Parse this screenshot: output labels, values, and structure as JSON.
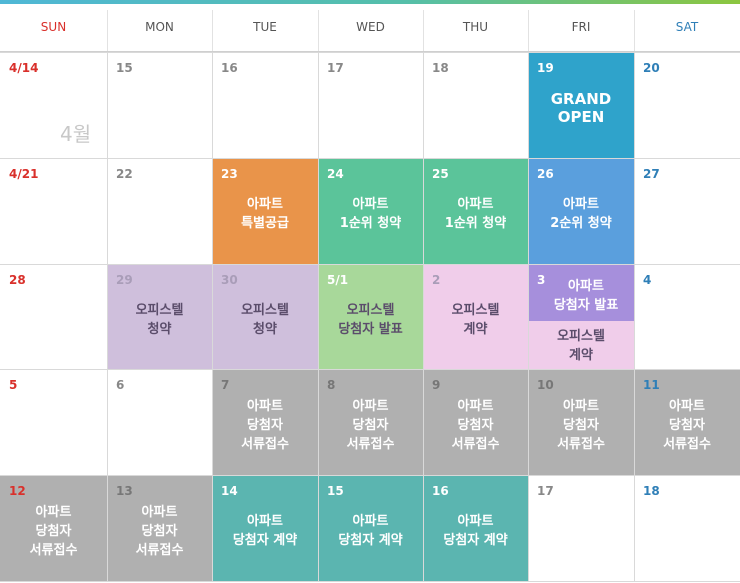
{
  "weekdays": [
    "SUN",
    "MON",
    "TUE",
    "WED",
    "THU",
    "FRI",
    "SAT"
  ],
  "month_label": "4월",
  "colors": {
    "orange": "#e9944a",
    "green": "#5bc49a",
    "blue": "#5a9fdd",
    "grand_blue": "#2fa3cb",
    "lilac": "#cfbfdc",
    "lightgreen": "#a8d89a",
    "pink": "#f0cdea",
    "purple": "#a68fdc",
    "gray": "#b0b0b0",
    "teal": "#5bb5b0"
  },
  "weeks": [
    [
      {
        "date": "4/14"
      },
      {
        "date": "15"
      },
      {
        "date": "16"
      },
      {
        "date": "17"
      },
      {
        "date": "18"
      },
      {
        "date": "19",
        "label": "GRAND\nOPEN",
        "color": "grand_blue"
      },
      {
        "date": "20"
      }
    ],
    [
      {
        "date": "4/21"
      },
      {
        "date": "22"
      },
      {
        "date": "23",
        "label": "아파트\n특별공급",
        "color": "orange"
      },
      {
        "date": "24",
        "label": "아파트\n1순위 청약",
        "color": "green"
      },
      {
        "date": "25",
        "label": "아파트\n1순위 청약",
        "color": "green"
      },
      {
        "date": "26",
        "label": "아파트\n2순위 청약",
        "color": "blue"
      },
      {
        "date": "27"
      }
    ],
    [
      {
        "date": "28"
      },
      {
        "date": "29",
        "label": "오피스텔\n청약",
        "color": "lilac"
      },
      {
        "date": "30",
        "label": "오피스텔\n청약",
        "color": "lilac"
      },
      {
        "date": "5/1",
        "label": "오피스텔\n당첨자 발표",
        "color": "lightgreen"
      },
      {
        "date": "2",
        "label": "오피스텔\n계약",
        "color": "pink"
      },
      {
        "date": "3",
        "label": "아파트\n당첨자 발표",
        "color": "purple",
        "label2": "오피스텔\n계약",
        "color2": "pink"
      },
      {
        "date": "4"
      }
    ],
    [
      {
        "date": "5"
      },
      {
        "date": "6"
      },
      {
        "date": "7",
        "label": "아파트\n당첨자\n서류접수",
        "color": "gray"
      },
      {
        "date": "8",
        "label": "아파트\n당첨자\n서류접수",
        "color": "gray"
      },
      {
        "date": "9",
        "label": "아파트\n당첨자\n서류접수",
        "color": "gray"
      },
      {
        "date": "10",
        "label": "아파트\n당첨자\n서류접수",
        "color": "gray"
      },
      {
        "date": "11",
        "label": "아파트\n당첨자\n서류접수",
        "color": "gray"
      }
    ],
    [
      {
        "date": "12",
        "label": "아파트\n당첨자\n서류접수",
        "color": "gray"
      },
      {
        "date": "13",
        "label": "아파트\n당첨자\n서류접수",
        "color": "gray"
      },
      {
        "date": "14",
        "label": "아파트\n당첨자 계약",
        "color": "teal"
      },
      {
        "date": "15",
        "label": "아파트\n당첨자 계약",
        "color": "teal"
      },
      {
        "date": "16",
        "label": "아파트\n당첨자 계약",
        "color": "teal"
      },
      {
        "date": "17"
      },
      {
        "date": "18"
      }
    ]
  ]
}
